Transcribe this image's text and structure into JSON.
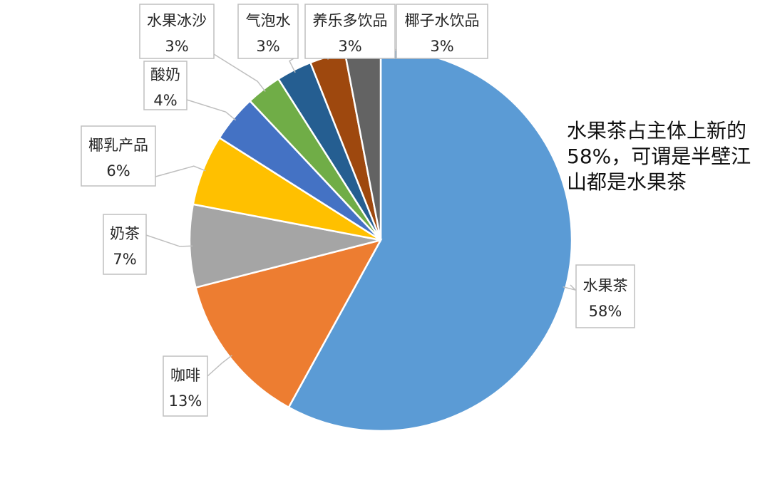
{
  "chart_data": {
    "type": "pie",
    "slices": [
      {
        "label": "水果茶",
        "value": 58,
        "value_label": "58%",
        "color": "#5b9bd5"
      },
      {
        "label": "咖啡",
        "value": 13,
        "value_label": "13%",
        "color": "#ed7d31"
      },
      {
        "label": "奶茶",
        "value": 7,
        "value_label": "7%",
        "color": "#a5a5a5"
      },
      {
        "label": "椰乳产品",
        "value": 6,
        "value_label": "6%",
        "color": "#ffc000"
      },
      {
        "label": "酸奶",
        "value": 4,
        "value_label": "4%",
        "color": "#4472c4"
      },
      {
        "label": "水果冰沙",
        "value": 3,
        "value_label": "3%",
        "color": "#70ad47"
      },
      {
        "label": "气泡水",
        "value": 3,
        "value_label": "3%",
        "color": "#255e91"
      },
      {
        "label": "养乐多饮品",
        "value": 3,
        "value_label": "3%",
        "color": "#9e480e"
      },
      {
        "label": "椰子水饮品",
        "value": 3,
        "value_label": "3%",
        "color": "#636363"
      }
    ],
    "annotation": "水果茶占主体上新的58%，可谓是半壁江山都是水果茶",
    "legend": "none"
  }
}
